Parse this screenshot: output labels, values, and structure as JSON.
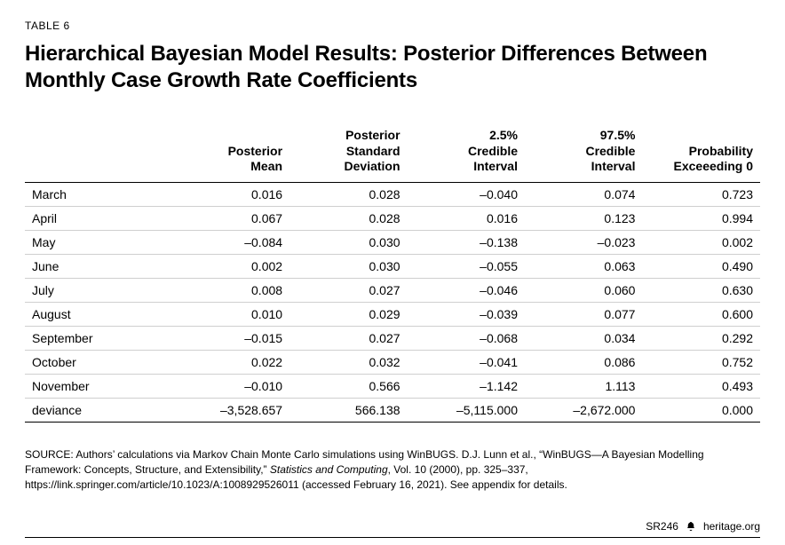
{
  "tableLabel": "TABLE 6",
  "title": "Hierarchical Bayesian Model Results: Posterior Differences Between Monthly Case Growth Rate Coefficients",
  "columns": [
    "",
    "Posterior Mean",
    "Posterior Standard Deviation",
    "2.5% Credible Interval",
    "97.5% Credible Interval",
    "Probability Exceeeding 0"
  ],
  "columnsLines": [
    [
      ""
    ],
    [
      "Posterior",
      "Mean"
    ],
    [
      "Posterior",
      "Standard",
      "Deviation"
    ],
    [
      "2.5%",
      "Credible",
      "Interval"
    ],
    [
      "97.5%",
      "Credible",
      "Interval"
    ],
    [
      "Probability",
      "Exceeeding 0"
    ]
  ],
  "rows": [
    {
      "label": "March",
      "mean": "0.016",
      "sd": "0.028",
      "lo": "–0.040",
      "hi": "0.074",
      "p": "0.723"
    },
    {
      "label": "April",
      "mean": "0.067",
      "sd": "0.028",
      "lo": "0.016",
      "hi": "0.123",
      "p": "0.994"
    },
    {
      "label": "May",
      "mean": "–0.084",
      "sd": "0.030",
      "lo": "–0.138",
      "hi": "–0.023",
      "p": "0.002"
    },
    {
      "label": "June",
      "mean": "0.002",
      "sd": "0.030",
      "lo": "–0.055",
      "hi": "0.063",
      "p": "0.490"
    },
    {
      "label": "July",
      "mean": "0.008",
      "sd": "0.027",
      "lo": "–0.046",
      "hi": "0.060",
      "p": "0.630"
    },
    {
      "label": "August",
      "mean": "0.010",
      "sd": "0.029",
      "lo": "–0.039",
      "hi": "0.077",
      "p": "0.600"
    },
    {
      "label": "September",
      "mean": "–0.015",
      "sd": "0.027",
      "lo": "–0.068",
      "hi": "0.034",
      "p": "0.292"
    },
    {
      "label": "October",
      "mean": "0.022",
      "sd": "0.032",
      "lo": "–0.041",
      "hi": "0.086",
      "p": "0.752"
    },
    {
      "label": "November",
      "mean": "–0.010",
      "sd": "0.566",
      "lo": "–1.142",
      "hi": "1.113",
      "p": "0.493"
    },
    {
      "label": "deviance",
      "mean": "–3,528.657",
      "sd": "566.138",
      "lo": "–5,115.000",
      "hi": "–2,672.000",
      "p": "0.000"
    }
  ],
  "source": {
    "lead": "SOURCE:",
    "body1": " Authors’ calculations via Markov Chain Monte Carlo simulations using WinBUGS. D.J. Lunn et al., “WinBUGS—A Bayesian Modelling Framework: Concepts, Structure, and Extensibility,” ",
    "em": "Statistics and Computing",
    "body2": ", Vol. 10 (2000), pp. 325–337, https://link.springer.com/article/10.1023/A:1008929526011 (accessed February 16, 2021). See appendix for details."
  },
  "footer": {
    "code": "SR246",
    "site": "heritage.org"
  },
  "style": {
    "background": "#ffffff",
    "text": "#000000",
    "headerRule": "#000000",
    "rowRule": "#cfcfcf",
    "titleFontSizePt": 18,
    "bodyFontSizePt": 10.5,
    "labelFontSizePt": 9
  }
}
